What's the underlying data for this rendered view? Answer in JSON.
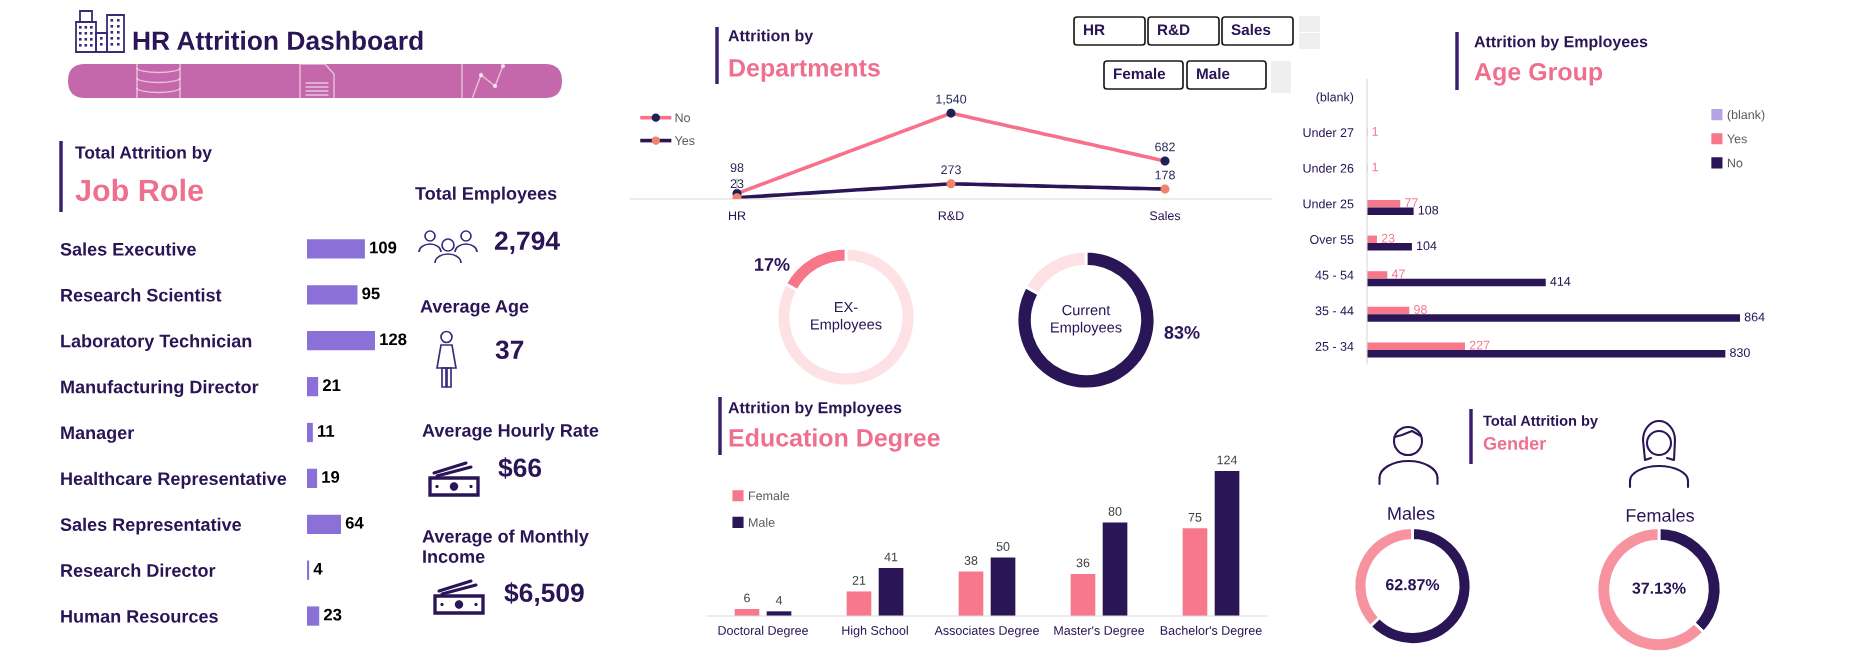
{
  "chart_data": [
    {
      "type": "other",
      "title": "HR Attrition Dashboard"
    },
    {
      "type": "bar",
      "orientation": "horizontal",
      "title": "Total Attrition by",
      "subtitle": "Job Role",
      "categories": [
        "Sales Executive",
        "Research Scientist",
        "Laboratory Technician",
        "Manufacturing Director",
        "Manager",
        "Healthcare Representative",
        "Sales Representative",
        "Research Director",
        "Human Resources"
      ],
      "values": [
        109,
        95,
        128,
        21,
        11,
        19,
        64,
        4,
        23
      ],
      "color": "#8b70d8",
      "data_labels": true,
      "tick_labels": "y"
    },
    {
      "type": "other",
      "annotations": [
        "Total Employees",
        "2,794",
        "Average Age",
        "37",
        "Average Hourly Rate",
        "$66",
        "Average of Monthly\nIncome",
        "$6,509"
      ]
    },
    {
      "type": "line",
      "title": "Attrition by",
      "subtitle": "Departments",
      "categories": [
        "HR",
        "R&D",
        "Sales"
      ],
      "series": [
        {
          "name": "No",
          "color": "#f7718a",
          "colors": [
            "#1c2157",
            "#1c2157",
            "#1c2157"
          ],
          "values": [
            98,
            1540,
            682
          ],
          "value_labels": [
            "98",
            "1,540",
            "682"
          ]
        },
        {
          "name": "Yes",
          "color": "#2a1657",
          "colors": [
            "#f4806e",
            "#f4806e",
            "#f4806e"
          ],
          "values": [
            23,
            273,
            178
          ],
          "value_labels": [
            "23",
            "273",
            "178"
          ]
        }
      ],
      "marker": "circle",
      "legend": "top left",
      "tick_labels": "x"
    },
    {
      "type": "other",
      "annotations": [
        "HR",
        "R&D",
        "Sales"
      ]
    },
    {
      "type": "other",
      "annotations": [
        "Female",
        "Male"
      ]
    },
    {
      "type": "donut",
      "title": "EX-\nEmployees",
      "values": [
        83,
        17
      ],
      "colors": [
        "#fde1e5",
        "#f8768a"
      ],
      "value_labels": [
        null,
        "17%"
      ]
    },
    {
      "type": "donut",
      "title": "Current\nEmployees",
      "values": [
        83,
        17
      ],
      "colors": [
        "#2a1657",
        "#fde1e5"
      ],
      "value_labels": [
        "83%",
        null
      ]
    },
    {
      "type": "bar",
      "title": "Attrition by Employees",
      "subtitle": "Education Degree",
      "categories": [
        "Doctoral Degree",
        "High School",
        "Associates Degree",
        "Master's Degree",
        "Bachelor's Degree"
      ],
      "series": [
        {
          "name": "Female",
          "color": "#f7778b",
          "values": [
            6,
            21,
            38,
            36,
            75
          ]
        },
        {
          "name": "Male",
          "color": "#2a1657",
          "values": [
            4,
            41,
            50,
            80,
            124
          ]
        }
      ],
      "data_labels": true,
      "legend": "top left",
      "tick_labels": "x"
    },
    {
      "type": "bar",
      "orientation": "horizontal",
      "title": "Attrition by Employees",
      "subtitle": "Age Group",
      "categories": [
        "(blank)",
        "Under 27",
        "Under 26",
        "Under 25",
        "Over 55",
        "45 - 54",
        "35 - 44",
        "25 - 34"
      ],
      "series": [
        {
          "name": "(blank)",
          "color": "#b5a3e3",
          "values": [
            null,
            null,
            null,
            null,
            null,
            null,
            null,
            null
          ]
        },
        {
          "name": "Yes",
          "color": "#f7778b",
          "values": [
            null,
            1,
            1,
            77,
            23,
            47,
            98,
            227
          ]
        },
        {
          "name": "No",
          "color": "#2a1657",
          "values": [
            null,
            null,
            null,
            108,
            104,
            414,
            864,
            830
          ]
        }
      ],
      "data_labels": true,
      "legend": "top right",
      "tick_labels": "y"
    },
    {
      "type": "other",
      "title": "Total Attrition by",
      "subtitle": "Gender"
    },
    {
      "type": "donut",
      "title": "Males",
      "values": [
        62.87,
        37.13
      ],
      "colors": [
        "#2a1657",
        "#f7939f"
      ],
      "value_labels": [
        "62.87%",
        null
      ]
    },
    {
      "type": "donut",
      "title": "Females",
      "values": [
        37.13,
        62.87
      ],
      "colors": [
        "#2a1657",
        "#f7939f"
      ],
      "value_labels": [
        "37.13%",
        null
      ]
    }
  ]
}
